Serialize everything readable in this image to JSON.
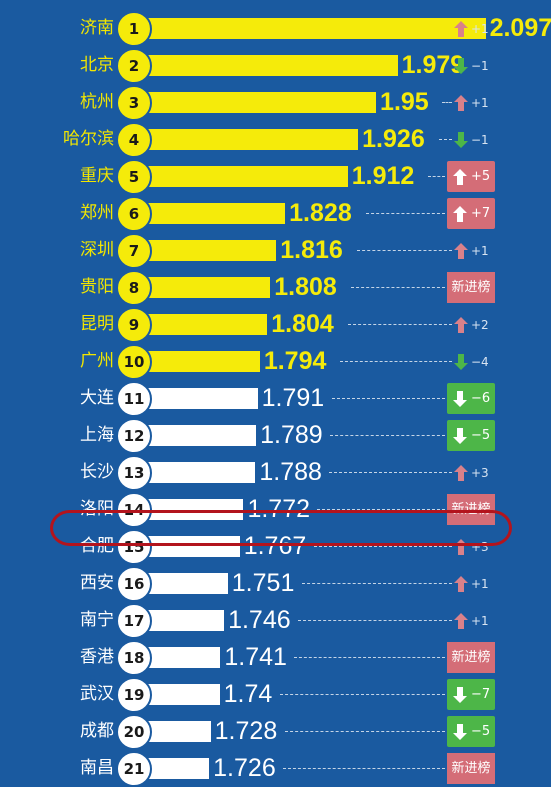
{
  "colors": {
    "background": "#1a5aa0",
    "top10_bar": "#f5eb0a",
    "other_bar": "#ffffff",
    "up_arrow": "#d9818a",
    "down_arrow": "#4db648",
    "new_badge": "#d46d77",
    "highlight_ring": "#b3141d"
  },
  "chart_data": {
    "type": "bar",
    "orientation": "horizontal",
    "title": "",
    "xlabel": "",
    "ylabel": "",
    "xlim": [
      1.5,
      2.2
    ],
    "highlighted_category": "洛阳",
    "rows": [
      {
        "rank": "1",
        "city": "济南",
        "value": "2.097",
        "change": "+1",
        "direction": "up",
        "boxed": false
      },
      {
        "rank": "2",
        "city": "北京",
        "value": "1.979",
        "change": "−1",
        "direction": "down",
        "boxed": false
      },
      {
        "rank": "3",
        "city": "杭州",
        "value": "1.95",
        "change": "+1",
        "direction": "up",
        "boxed": false
      },
      {
        "rank": "4",
        "city": "哈尔滨",
        "value": "1.926",
        "change": "−1",
        "direction": "down",
        "boxed": false
      },
      {
        "rank": "5",
        "city": "重庆",
        "value": "1.912",
        "change": "+5",
        "direction": "up",
        "boxed": true
      },
      {
        "rank": "6",
        "city": "郑州",
        "value": "1.828",
        "change": "+7",
        "direction": "up",
        "boxed": true
      },
      {
        "rank": "7",
        "city": "深圳",
        "value": "1.816",
        "change": "+1",
        "direction": "up",
        "boxed": false
      },
      {
        "rank": "8",
        "city": "贵阳",
        "value": "1.808",
        "change": "新进榜",
        "direction": "new",
        "boxed": true
      },
      {
        "rank": "9",
        "city": "昆明",
        "value": "1.804",
        "change": "+2",
        "direction": "up",
        "boxed": false
      },
      {
        "rank": "10",
        "city": "广州",
        "value": "1.794",
        "change": "−4",
        "direction": "down",
        "boxed": false
      },
      {
        "rank": "11",
        "city": "大连",
        "value": "1.791",
        "change": "−6",
        "direction": "down",
        "boxed": true
      },
      {
        "rank": "12",
        "city": "上海",
        "value": "1.789",
        "change": "−5",
        "direction": "down",
        "boxed": true
      },
      {
        "rank": "13",
        "city": "长沙",
        "value": "1.788",
        "change": "+3",
        "direction": "up",
        "boxed": false
      },
      {
        "rank": "14",
        "city": "洛阳",
        "value": "1.772",
        "change": "新进榜",
        "direction": "new",
        "boxed": true
      },
      {
        "rank": "15",
        "city": "合肥",
        "value": "1.767",
        "change": "+3",
        "direction": "up",
        "boxed": false
      },
      {
        "rank": "16",
        "city": "西安",
        "value": "1.751",
        "change": "+1",
        "direction": "up",
        "boxed": false
      },
      {
        "rank": "17",
        "city": "南宁",
        "value": "1.746",
        "change": "+1",
        "direction": "up",
        "boxed": false
      },
      {
        "rank": "18",
        "city": "香港",
        "value": "1.741",
        "change": "新进榜",
        "direction": "new",
        "boxed": true
      },
      {
        "rank": "19",
        "city": "武汉",
        "value": "1.74",
        "change": "−7",
        "direction": "down",
        "boxed": true
      },
      {
        "rank": "20",
        "city": "成都",
        "value": "1.728",
        "change": "−5",
        "direction": "down",
        "boxed": true
      },
      {
        "rank": "21",
        "city": "南昌",
        "value": "1.726",
        "change": "新进榜",
        "direction": "new",
        "boxed": true
      }
    ]
  }
}
